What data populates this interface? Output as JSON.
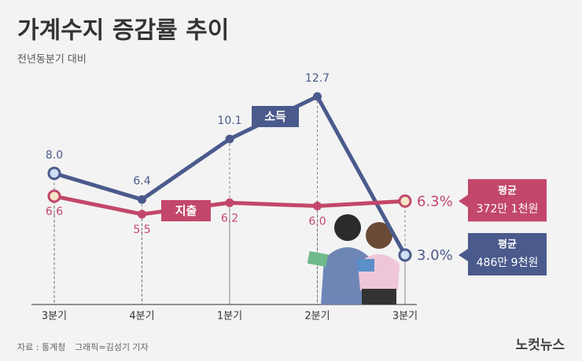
{
  "chart_data": {
    "type": "line",
    "title": "가계수지 증감률 추이",
    "subtitle": "전년동분기 대비",
    "categories": [
      "3분기",
      "4분기",
      "1분기",
      "2분기",
      "3분기"
    ],
    "series": [
      {
        "name": "소득",
        "color": "#4b5a8c",
        "values": [
          8.0,
          6.4,
          10.1,
          12.7,
          3.0
        ],
        "value_labels": [
          "8.0",
          "6.4",
          "10.1",
          "12.7",
          "3.0%"
        ],
        "callout": {
          "label": "평균",
          "value": "486만 9천원"
        }
      },
      {
        "name": "지출",
        "color": "#c2476a",
        "values": [
          6.6,
          5.5,
          6.2,
          6.0,
          6.3
        ],
        "value_labels": [
          "6.6",
          "5.5",
          "6.2",
          "6.0",
          "6.3%"
        ],
        "callout": {
          "label": "평균",
          "value": "372만 1천원"
        }
      }
    ],
    "source": "자료 : 통계청",
    "credit": "그래픽=김성기 기자",
    "logo": "노컷뉴스"
  }
}
